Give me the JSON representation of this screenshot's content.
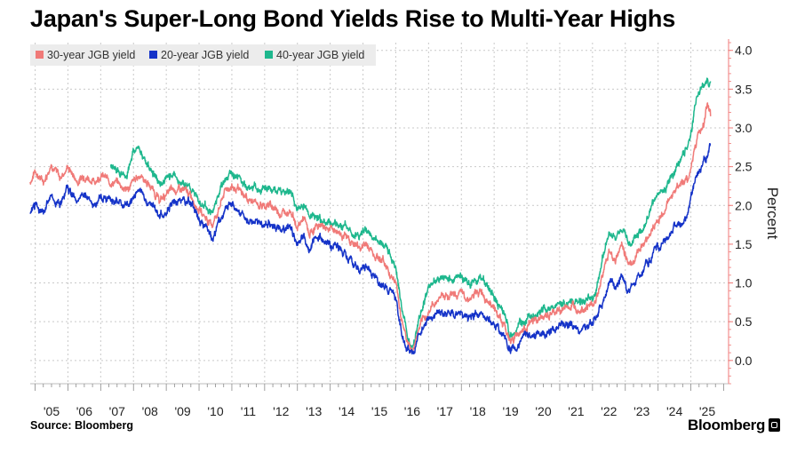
{
  "chart_data": {
    "type": "line",
    "title": "Japan's Super-Long Bond Yields Rise to Multi-Year Highs",
    "source": "Source: Bloomberg",
    "brand": "Bloomberg",
    "ylabel": "Percent",
    "xlabel": "",
    "ylim": [
      -0.3,
      4.1
    ],
    "xlim": [
      2004.85,
      2026.15
    ],
    "yticks": [
      0.0,
      0.5,
      1.0,
      1.5,
      2.0,
      2.5,
      3.0,
      3.5,
      4.0
    ],
    "ytick_labels": [
      "0.0",
      "0.5",
      "1.0",
      "1.5",
      "2.0",
      "2.5",
      "3.0",
      "3.5",
      "4.0"
    ],
    "xticks": [
      2005,
      2006,
      2007,
      2008,
      2009,
      2010,
      2011,
      2012,
      2013,
      2014,
      2015,
      2016,
      2017,
      2018,
      2019,
      2020,
      2021,
      2022,
      2023,
      2024,
      2025
    ],
    "xtick_labels": [
      "'05",
      "'06",
      "'07",
      "'08",
      "'09",
      "'10",
      "'11",
      "'12",
      "'13",
      "'14",
      "'15",
      "'16",
      "'17",
      "'18",
      "'19",
      "'20",
      "'21",
      "'22",
      "'23",
      "'24",
      "'25"
    ],
    "grid": true,
    "legend_position": "top-left",
    "series": [
      {
        "name": "30-year JGB yield",
        "color": "#f07a78",
        "x": [
          2004.85,
          2005.0,
          2005.25,
          2005.5,
          2005.75,
          2006.0,
          2006.3,
          2006.5,
          2006.8,
          2007.0,
          2007.3,
          2007.5,
          2007.8,
          2008.0,
          2008.2,
          2008.4,
          2008.6,
          2008.8,
          2009.0,
          2009.2,
          2009.5,
          2009.8,
          2010.0,
          2010.2,
          2010.4,
          2010.6,
          2010.8,
          2011.0,
          2011.3,
          2011.6,
          2011.9,
          2012.2,
          2012.5,
          2012.8,
          2013.0,
          2013.2,
          2013.35,
          2013.5,
          2013.7,
          2014.0,
          2014.3,
          2014.6,
          2014.9,
          2015.1,
          2015.4,
          2015.6,
          2015.8,
          2016.0,
          2016.2,
          2016.35,
          2016.5,
          2016.7,
          2016.9,
          2017.1,
          2017.4,
          2017.7,
          2018.0,
          2018.3,
          2018.6,
          2018.9,
          2019.1,
          2019.3,
          2019.5,
          2019.7,
          2019.9,
          2020.2,
          2020.5,
          2020.8,
          2021.0,
          2021.3,
          2021.6,
          2021.9,
          2022.1,
          2022.3,
          2022.5,
          2022.7,
          2022.9,
          2023.1,
          2023.3,
          2023.5,
          2023.7,
          2023.9,
          2024.1,
          2024.3,
          2024.5,
          2024.7,
          2024.9,
          2025.05,
          2025.2,
          2025.3,
          2025.4,
          2025.5,
          2025.6
        ],
        "values": [
          2.3,
          2.45,
          2.3,
          2.55,
          2.35,
          2.5,
          2.3,
          2.4,
          2.3,
          2.4,
          2.3,
          2.3,
          2.2,
          2.3,
          2.4,
          2.3,
          2.2,
          2.05,
          2.15,
          2.2,
          2.2,
          2.1,
          1.95,
          1.85,
          1.75,
          1.95,
          2.2,
          2.25,
          2.15,
          2.05,
          2.0,
          2.0,
          1.9,
          1.95,
          1.7,
          1.85,
          1.6,
          1.7,
          1.75,
          1.7,
          1.65,
          1.55,
          1.45,
          1.5,
          1.35,
          1.3,
          1.15,
          1.0,
          0.5,
          0.25,
          0.1,
          0.4,
          0.55,
          0.7,
          0.85,
          0.85,
          0.85,
          0.8,
          0.9,
          0.75,
          0.6,
          0.45,
          0.25,
          0.35,
          0.4,
          0.5,
          0.55,
          0.6,
          0.65,
          0.7,
          0.7,
          0.7,
          0.75,
          1.1,
          1.4,
          1.3,
          1.5,
          1.25,
          1.3,
          1.5,
          1.6,
          1.75,
          1.85,
          2.05,
          2.2,
          2.3,
          2.3,
          2.6,
          2.9,
          2.95,
          3.05,
          3.3,
          3.15
        ]
      },
      {
        "name": "20-year JGB yield",
        "color": "#1533c8",
        "x": [
          2004.85,
          2005.0,
          2005.25,
          2005.5,
          2005.75,
          2006.0,
          2006.3,
          2006.5,
          2006.8,
          2007.0,
          2007.3,
          2007.5,
          2007.8,
          2008.0,
          2008.2,
          2008.4,
          2008.6,
          2008.8,
          2009.0,
          2009.2,
          2009.5,
          2009.8,
          2010.0,
          2010.2,
          2010.4,
          2010.6,
          2010.8,
          2011.0,
          2011.3,
          2011.6,
          2011.9,
          2012.2,
          2012.5,
          2012.8,
          2013.0,
          2013.2,
          2013.35,
          2013.5,
          2013.7,
          2014.0,
          2014.3,
          2014.6,
          2014.9,
          2015.1,
          2015.4,
          2015.6,
          2015.8,
          2016.0,
          2016.2,
          2016.35,
          2016.5,
          2016.7,
          2016.9,
          2017.1,
          2017.4,
          2017.7,
          2018.0,
          2018.3,
          2018.6,
          2018.9,
          2019.1,
          2019.3,
          2019.5,
          2019.7,
          2019.9,
          2020.2,
          2020.5,
          2020.8,
          2021.0,
          2021.3,
          2021.6,
          2021.9,
          2022.1,
          2022.3,
          2022.5,
          2022.7,
          2022.9,
          2023.1,
          2023.3,
          2023.5,
          2023.7,
          2023.9,
          2024.1,
          2024.3,
          2024.5,
          2024.7,
          2024.9,
          2025.05,
          2025.2,
          2025.3,
          2025.4,
          2025.5,
          2025.6
        ],
        "values": [
          1.9,
          2.0,
          1.95,
          2.1,
          2.0,
          2.25,
          2.05,
          2.15,
          2.0,
          2.1,
          2.05,
          2.05,
          2.0,
          2.1,
          2.2,
          2.05,
          2.0,
          1.85,
          1.9,
          2.05,
          2.1,
          2.0,
          1.8,
          1.7,
          1.55,
          1.8,
          1.95,
          2.05,
          1.9,
          1.8,
          1.75,
          1.75,
          1.7,
          1.7,
          1.55,
          1.65,
          1.35,
          1.6,
          1.55,
          1.45,
          1.45,
          1.3,
          1.15,
          1.2,
          1.05,
          0.95,
          0.9,
          0.8,
          0.3,
          0.1,
          0.05,
          0.35,
          0.5,
          0.6,
          0.6,
          0.6,
          0.6,
          0.55,
          0.6,
          0.5,
          0.45,
          0.3,
          0.1,
          0.2,
          0.3,
          0.3,
          0.35,
          0.4,
          0.45,
          0.45,
          0.4,
          0.45,
          0.55,
          0.75,
          1.0,
          0.95,
          1.1,
          0.9,
          1.0,
          1.15,
          1.25,
          1.45,
          1.5,
          1.6,
          1.75,
          1.75,
          1.85,
          2.2,
          2.4,
          2.5,
          2.6,
          2.65,
          2.8
        ]
      },
      {
        "name": "40-year JGB yield",
        "color": "#1eb78d",
        "x": [
          2007.3,
          2007.5,
          2007.8,
          2008.0,
          2008.2,
          2008.4,
          2008.6,
          2008.8,
          2009.0,
          2009.2,
          2009.5,
          2009.8,
          2010.0,
          2010.2,
          2010.4,
          2010.6,
          2010.8,
          2011.0,
          2011.3,
          2011.6,
          2011.9,
          2012.2,
          2012.5,
          2012.8,
          2013.0,
          2013.2,
          2013.35,
          2013.5,
          2013.7,
          2014.0,
          2014.3,
          2014.6,
          2014.9,
          2015.1,
          2015.4,
          2015.6,
          2015.8,
          2016.0,
          2016.2,
          2016.35,
          2016.5,
          2016.7,
          2016.9,
          2017.1,
          2017.4,
          2017.7,
          2018.0,
          2018.3,
          2018.6,
          2018.9,
          2019.1,
          2019.3,
          2019.5,
          2019.7,
          2019.9,
          2020.2,
          2020.5,
          2020.8,
          2021.0,
          2021.3,
          2021.6,
          2021.9,
          2022.1,
          2022.3,
          2022.5,
          2022.7,
          2022.9,
          2023.1,
          2023.3,
          2023.5,
          2023.7,
          2023.9,
          2024.1,
          2024.3,
          2024.5,
          2024.7,
          2024.9,
          2025.05,
          2025.2,
          2025.3,
          2025.4,
          2025.5,
          2025.6
        ],
        "values": [
          2.5,
          2.45,
          2.4,
          2.7,
          2.7,
          2.55,
          2.4,
          2.3,
          2.35,
          2.35,
          2.3,
          2.2,
          2.05,
          2.0,
          1.9,
          2.15,
          2.4,
          2.4,
          2.3,
          2.25,
          2.2,
          2.2,
          2.15,
          2.2,
          1.95,
          2.05,
          1.85,
          1.9,
          1.8,
          1.75,
          1.75,
          1.7,
          1.6,
          1.65,
          1.55,
          1.5,
          1.4,
          1.2,
          0.65,
          0.35,
          0.15,
          0.5,
          0.8,
          1.0,
          1.05,
          1.05,
          1.05,
          1.0,
          1.1,
          0.9,
          0.75,
          0.6,
          0.3,
          0.45,
          0.5,
          0.6,
          0.65,
          0.7,
          0.7,
          0.75,
          0.75,
          0.8,
          0.85,
          1.3,
          1.65,
          1.55,
          1.7,
          1.5,
          1.55,
          1.7,
          1.85,
          2.05,
          2.15,
          2.3,
          2.45,
          2.65,
          2.75,
          3.05,
          3.45,
          3.5,
          3.55,
          3.6,
          3.6
        ]
      }
    ]
  }
}
